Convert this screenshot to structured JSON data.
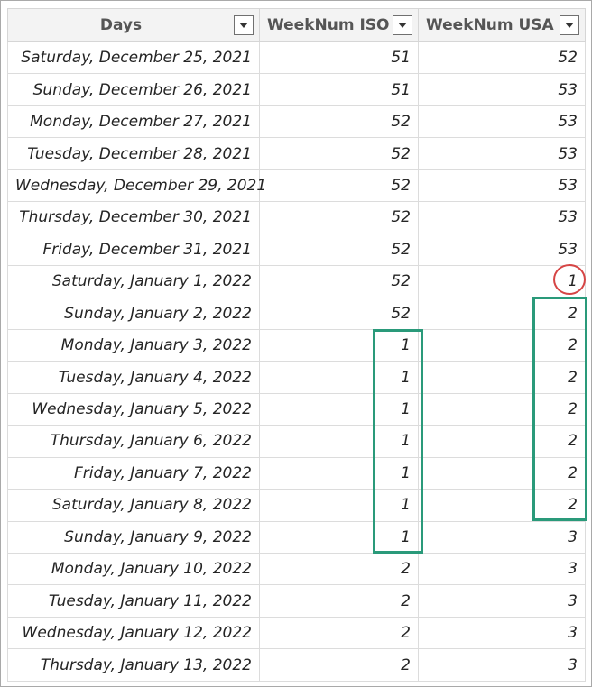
{
  "columns": {
    "days": "Days",
    "weeknum_iso": "WeekNum ISO",
    "weeknum_usa": "WeekNum USA"
  },
  "rows": [
    {
      "day": "Saturday, December 25, 2021",
      "iso": "51",
      "usa": "52"
    },
    {
      "day": "Sunday, December 26, 2021",
      "iso": "51",
      "usa": "53"
    },
    {
      "day": "Monday, December 27, 2021",
      "iso": "52",
      "usa": "53"
    },
    {
      "day": "Tuesday, December 28, 2021",
      "iso": "52",
      "usa": "53"
    },
    {
      "day": "Wednesday, December 29, 2021",
      "iso": "52",
      "usa": "53"
    },
    {
      "day": "Thursday, December 30, 2021",
      "iso": "52",
      "usa": "53"
    },
    {
      "day": "Friday, December 31, 2021",
      "iso": "52",
      "usa": "53"
    },
    {
      "day": "Saturday, January 1, 2022",
      "iso": "52",
      "usa": "1"
    },
    {
      "day": "Sunday, January 2, 2022",
      "iso": "52",
      "usa": "2"
    },
    {
      "day": "Monday, January 3, 2022",
      "iso": "1",
      "usa": "2"
    },
    {
      "day": "Tuesday, January 4, 2022",
      "iso": "1",
      "usa": "2"
    },
    {
      "day": "Wednesday, January 5, 2022",
      "iso": "1",
      "usa": "2"
    },
    {
      "day": "Thursday, January 6, 2022",
      "iso": "1",
      "usa": "2"
    },
    {
      "day": "Friday, January 7, 2022",
      "iso": "1",
      "usa": "2"
    },
    {
      "day": "Saturday, January 8, 2022",
      "iso": "1",
      "usa": "2"
    },
    {
      "day": "Sunday, January 9, 2022",
      "iso": "1",
      "usa": "3"
    },
    {
      "day": "Monday, January 10, 2022",
      "iso": "2",
      "usa": "3"
    },
    {
      "day": "Tuesday, January 11, 2022",
      "iso": "2",
      "usa": "3"
    },
    {
      "day": "Wednesday, January 12, 2022",
      "iso": "2",
      "usa": "3"
    },
    {
      "day": "Thursday, January 13, 2022",
      "iso": "2",
      "usa": "3"
    }
  ],
  "icons": {
    "filter": "filter-dropdown-icon"
  },
  "colors": {
    "highlight_red": "#d64545",
    "highlight_green": "#2a9a7a",
    "header_bg": "#f3f3f3"
  }
}
